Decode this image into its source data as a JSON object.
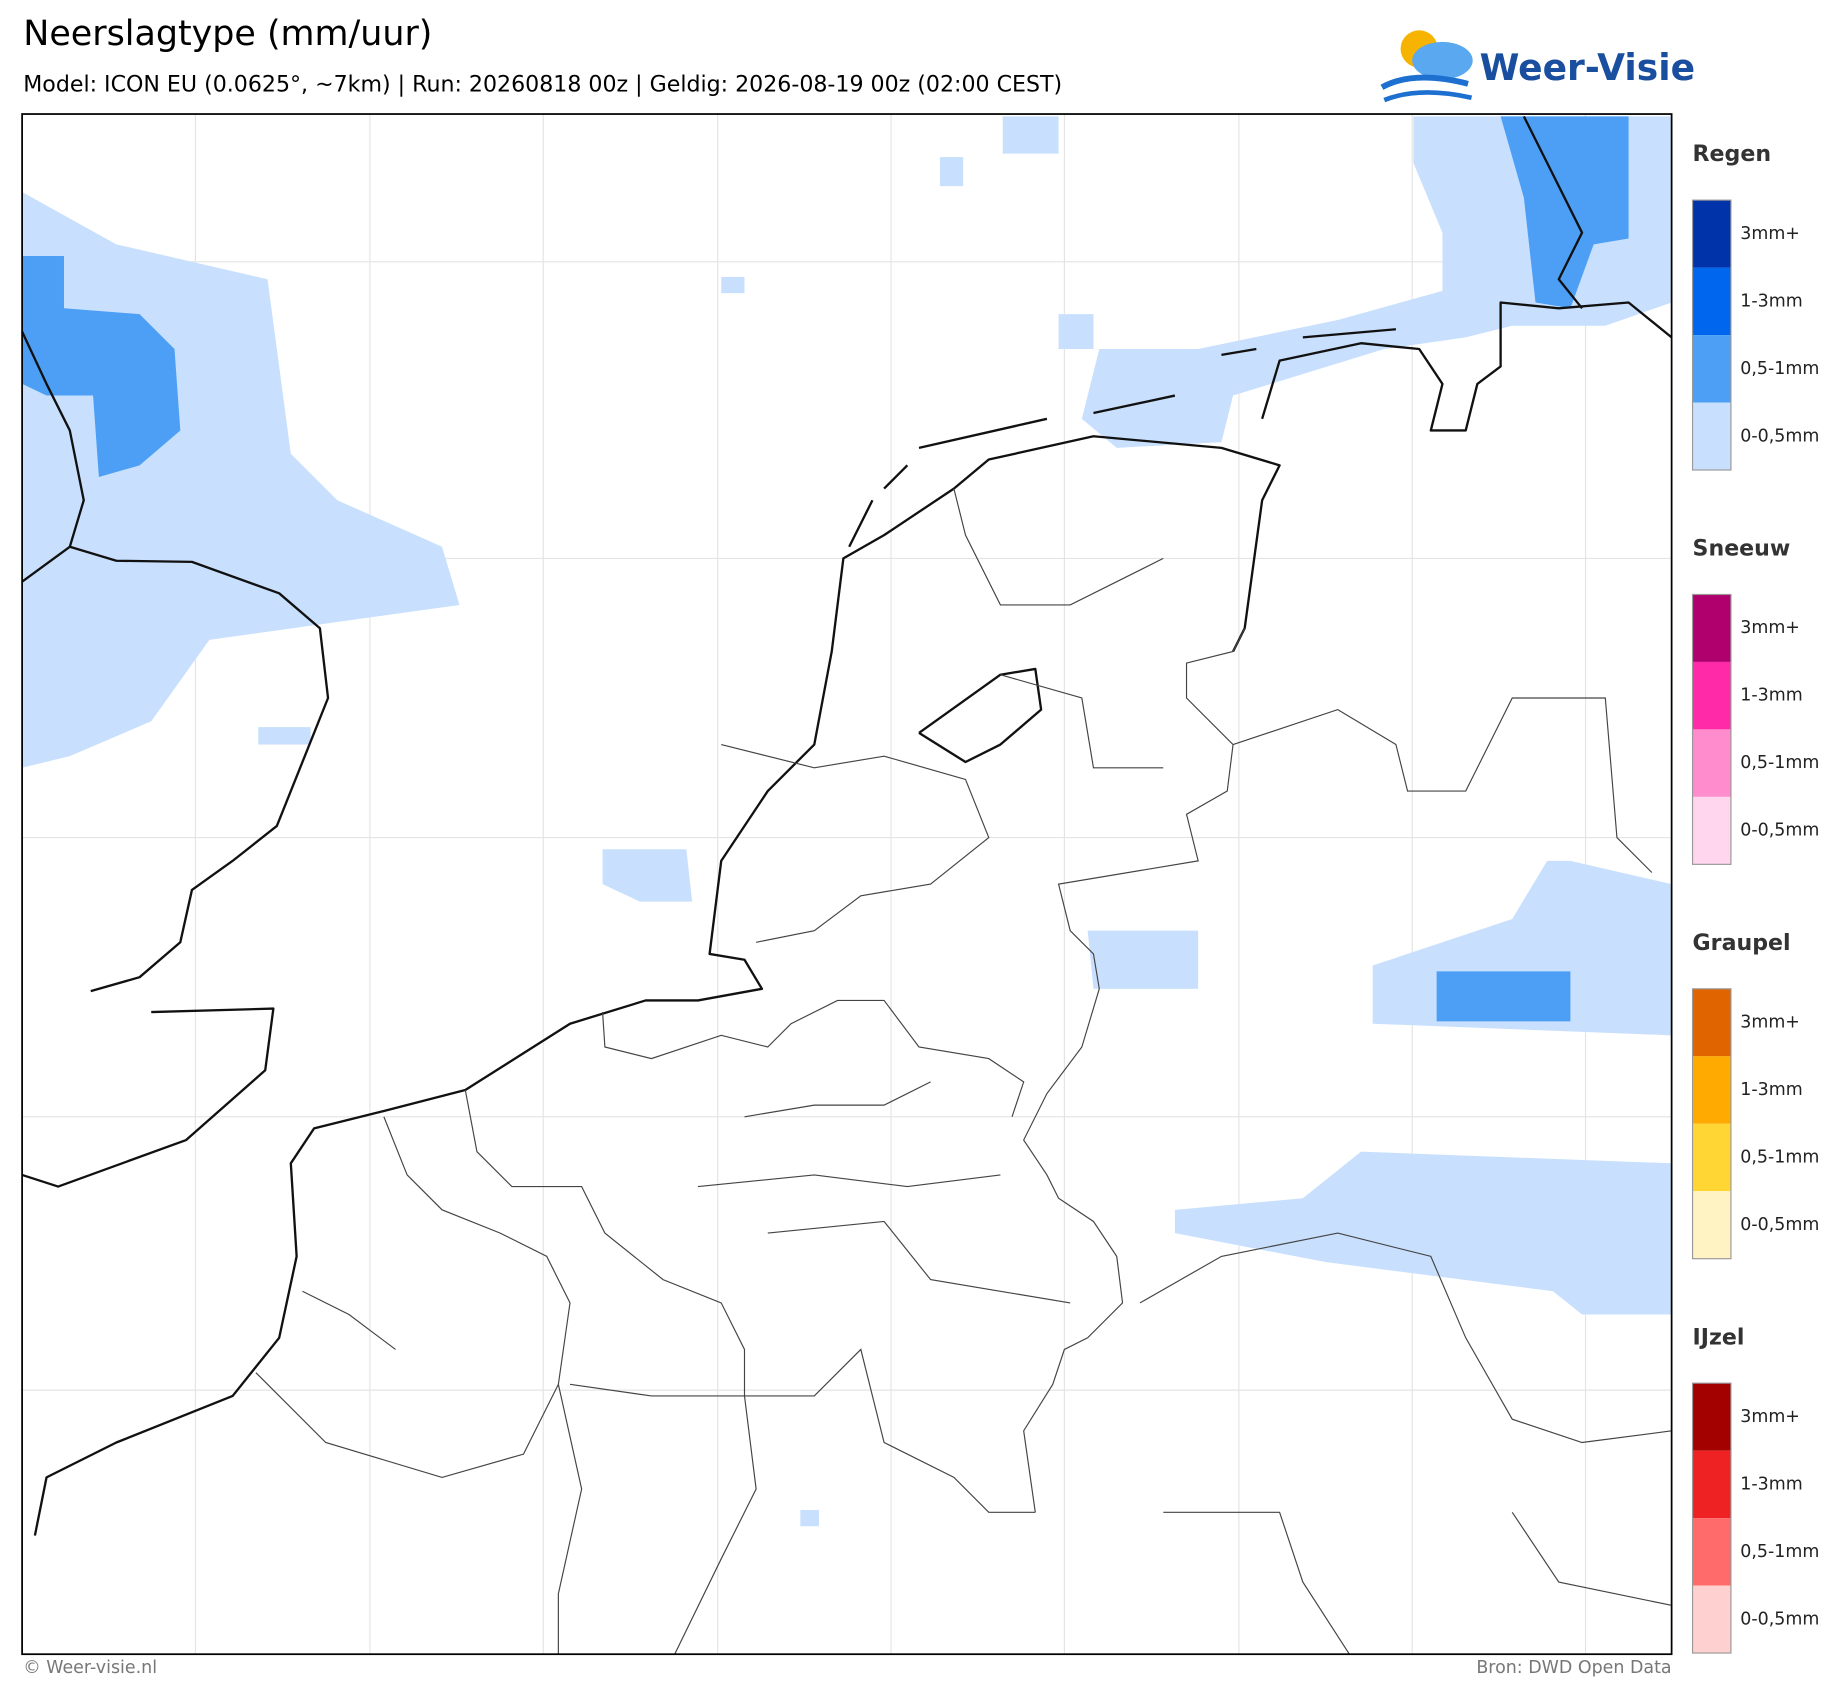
{
  "header": {
    "title": "Neerslagtype (mm/uur)",
    "subtitle": "Model: ICON EU (0.0625°, ~7km)  |  Run: 20260818 00z  |  Geldig: 2026-08-19 00z (02:00 CEST)",
    "logo": "Weer-Visie"
  },
  "legend": [
    {
      "title": "Regen",
      "items": [
        {
          "label": "3mm+",
          "color": "#0033aa"
        },
        {
          "label": "1-3mm",
          "color": "#0066ee"
        },
        {
          "label": "0,5-1mm",
          "color": "#4d9ff5"
        },
        {
          "label": "0-0,5mm",
          "color": "#c8e0fd"
        }
      ]
    },
    {
      "title": "Sneeuw",
      "items": [
        {
          "label": "3mm+",
          "color": "#b0006e"
        },
        {
          "label": "1-3mm",
          "color": "#ff2aa8"
        },
        {
          "label": "0,5-1mm",
          "color": "#ff8ccc"
        },
        {
          "label": "0-0,5mm",
          "color": "#ffd6ee"
        }
      ]
    },
    {
      "title": "Graupel",
      "items": [
        {
          "label": "3mm+",
          "color": "#e06400"
        },
        {
          "label": "1-3mm",
          "color": "#ffaa00"
        },
        {
          "label": "0,5-1mm",
          "color": "#ffd633"
        },
        {
          "label": "0-0,5mm",
          "color": "#fff3c4"
        }
      ]
    },
    {
      "title": "IJzel",
      "items": [
        {
          "label": "3mm+",
          "color": "#a30000"
        },
        {
          "label": "1-3mm",
          "color": "#ee2222"
        },
        {
          "label": "0,5-1mm",
          "color": "#ff6b6b"
        },
        {
          "label": "0-0,5mm",
          "color": "#ffd0d0"
        }
      ]
    }
  ],
  "footer": {
    "left": "© Weer-visie.nl",
    "right": "Bron: DWD Open Data"
  }
}
